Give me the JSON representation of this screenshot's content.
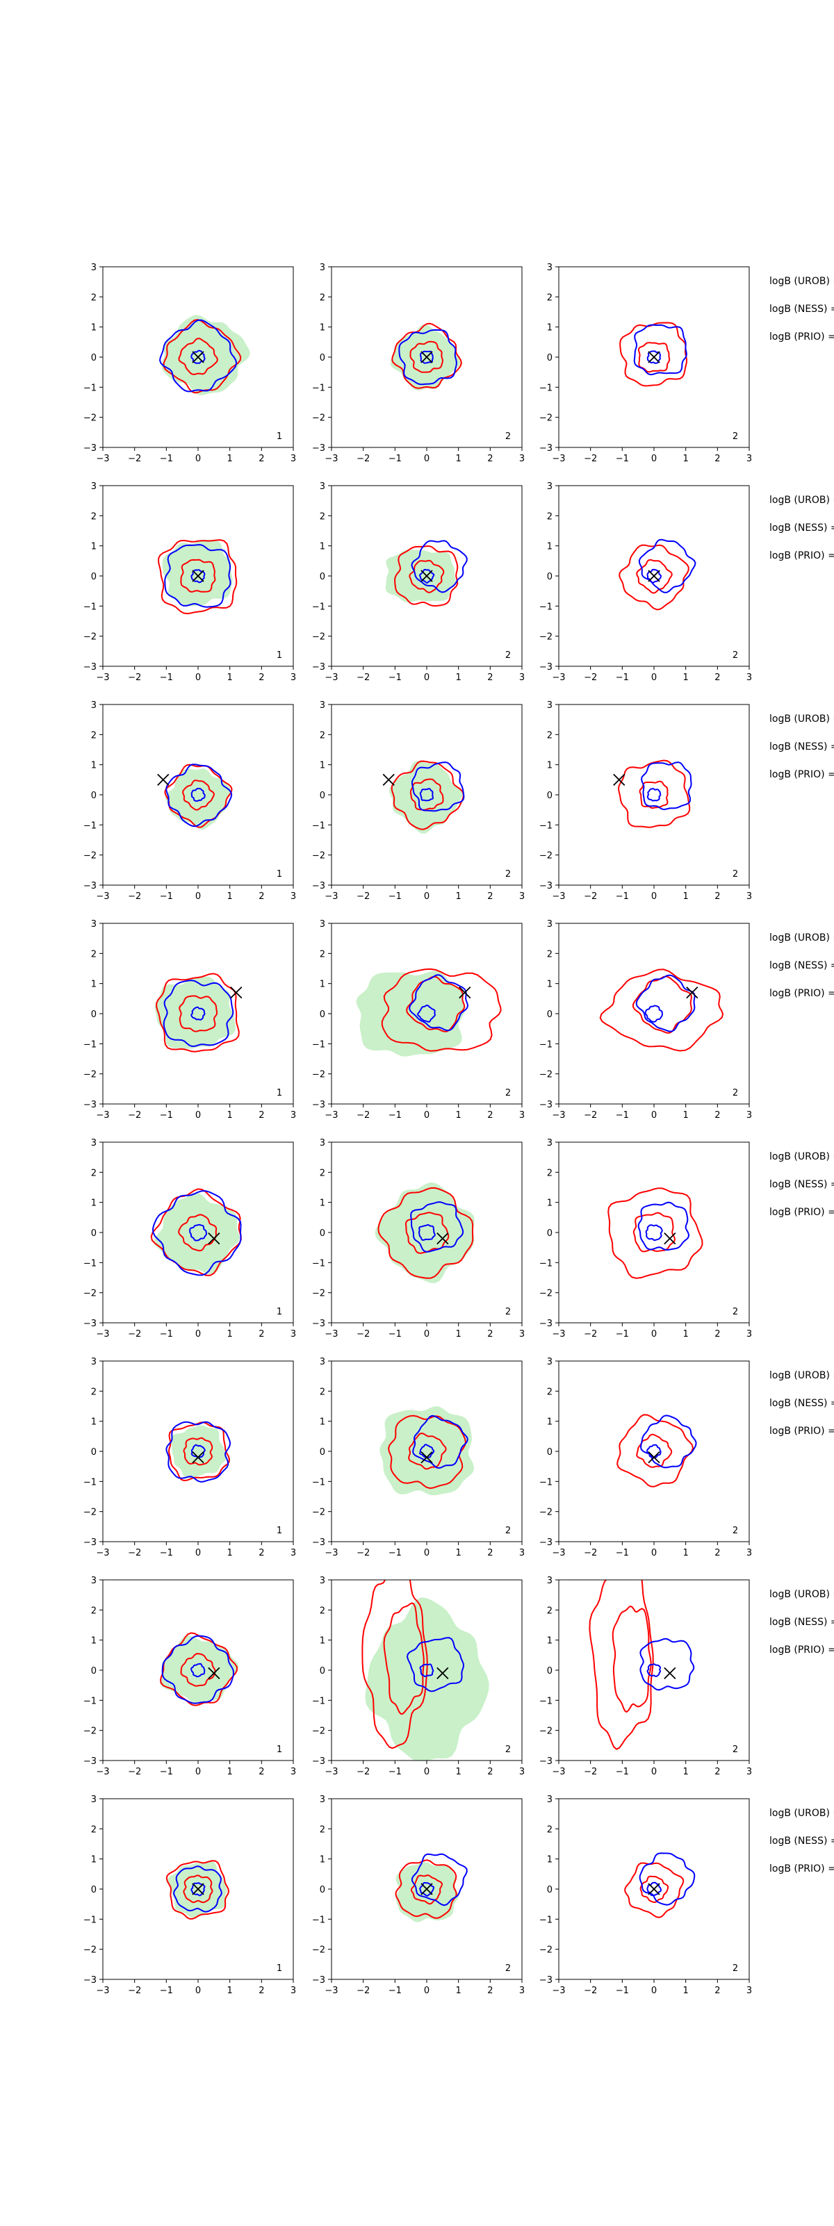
{
  "figure": {
    "colors": {
      "fill": "#c9f0c9",
      "red": "#ff0000",
      "blue": "#0000ff",
      "marker": "#000000"
    }
  },
  "axis": {
    "xlim": [
      -3,
      3
    ],
    "ylim": [
      -3,
      3
    ],
    "xticks": [
      "−3",
      "−2",
      "−1",
      "0",
      "1",
      "2",
      "3"
    ],
    "yticks": [
      "3",
      "2",
      "1",
      "0",
      "−1",
      "−2",
      "−3"
    ]
  },
  "side_labels": [
    "logB (UROB) =",
    "logB (NESS) =",
    "logB (PRIO) ="
  ],
  "chart_data": {
    "type": "contour",
    "grid": "8 rows × 3 columns of square panels",
    "legend": "none",
    "rows": [
      {
        "panels": [
          {
            "corner_label": "1",
            "marker": [
              0.0,
              0.0
            ],
            "fill": {
              "cx": 0.2,
              "cy": 0.05,
              "r": 1.3,
              "sx": 1.0,
              "sy": 0.95
            },
            "red": [
              {
                "cx": 0.1,
                "cy": 0.0,
                "r": 1.1
              },
              {
                "cx": 0.0,
                "cy": 0.0,
                "r": 0.55
              }
            ],
            "blue": [
              {
                "cx": 0.0,
                "cy": 0.0,
                "r": 1.1
              },
              {
                "cx": 0.0,
                "cy": 0.0,
                "r": 0.2
              }
            ]
          },
          {
            "corner_label": "2",
            "marker": [
              0.0,
              0.0
            ],
            "fill": {
              "cx": -0.05,
              "cy": -0.05,
              "r": 1.0,
              "sx": 1.0,
              "sy": 1.0
            },
            "red": [
              {
                "cx": 0.0,
                "cy": 0.0,
                "r": 1.0
              },
              {
                "cx": 0.0,
                "cy": 0.0,
                "r": 0.5
              }
            ],
            "blue": [
              {
                "cx": 0.05,
                "cy": 0.0,
                "r": 0.9
              },
              {
                "cx": 0.0,
                "cy": 0.0,
                "r": 0.2
              }
            ]
          },
          {
            "corner_label": "2",
            "marker": [
              0.0,
              0.0
            ],
            "fill": null,
            "red": [
              {
                "cx": 0.0,
                "cy": 0.1,
                "r": 1.05
              },
              {
                "cx": 0.0,
                "cy": 0.0,
                "r": 0.5
              }
            ],
            "blue": [
              {
                "cx": 0.2,
                "cy": 0.25,
                "r": 0.85
              },
              {
                "cx": 0.0,
                "cy": 0.0,
                "r": 0.2
              }
            ]
          }
        ]
      },
      {
        "panels": [
          {
            "corner_label": "1",
            "marker": [
              0.0,
              0.0
            ],
            "fill": {
              "cx": 0.0,
              "cy": 0.1,
              "r": 1.1,
              "sx": 1.0,
              "sy": 1.0
            },
            "red": [
              {
                "cx": 0.0,
                "cy": 0.0,
                "r": 1.25
              },
              {
                "cx": 0.0,
                "cy": 0.0,
                "r": 0.55
              }
            ],
            "blue": [
              {
                "cx": 0.0,
                "cy": 0.0,
                "r": 1.05
              },
              {
                "cx": 0.0,
                "cy": 0.0,
                "r": 0.2
              }
            ]
          },
          {
            "corner_label": "2",
            "marker": [
              0.0,
              0.0
            ],
            "fill": {
              "cx": -0.2,
              "cy": 0.0,
              "r": 0.95,
              "sx": 1.2,
              "sy": 0.95
            },
            "red": [
              {
                "cx": 0.0,
                "cy": 0.0,
                "r": 1.0
              },
              {
                "cx": 0.0,
                "cy": 0.0,
                "r": 0.5
              }
            ],
            "blue": [
              {
                "cx": 0.4,
                "cy": 0.35,
                "r": 0.8
              },
              {
                "cx": 0.0,
                "cy": 0.0,
                "r": 0.2
              }
            ]
          },
          {
            "corner_label": "2",
            "marker": [
              0.0,
              0.0
            ],
            "fill": null,
            "red": [
              {
                "cx": 0.0,
                "cy": 0.0,
                "r": 1.0
              },
              {
                "cx": 0.0,
                "cy": 0.0,
                "r": 0.5
              }
            ],
            "blue": [
              {
                "cx": 0.4,
                "cy": 0.35,
                "r": 0.8
              },
              {
                "cx": 0.0,
                "cy": 0.0,
                "r": 0.2
              }
            ]
          }
        ]
      },
      {
        "panels": [
          {
            "corner_label": "1",
            "marker": [
              -1.1,
              0.5
            ],
            "fill": {
              "cx": 0.0,
              "cy": -0.1,
              "r": 0.95,
              "sx": 1.0,
              "sy": 1.0
            },
            "red": [
              {
                "cx": 0.0,
                "cy": 0.0,
                "r": 0.95
              },
              {
                "cx": 0.0,
                "cy": 0.0,
                "r": 0.45
              }
            ],
            "blue": [
              {
                "cx": 0.0,
                "cy": 0.0,
                "r": 0.95
              },
              {
                "cx": 0.0,
                "cy": 0.0,
                "r": 0.2
              }
            ]
          },
          {
            "corner_label": "2",
            "marker": [
              -1.2,
              0.5
            ],
            "fill": {
              "cx": -0.05,
              "cy": -0.05,
              "r": 1.05,
              "sx": 1.0,
              "sy": 1.05
            },
            "red": [
              {
                "cx": 0.0,
                "cy": 0.0,
                "r": 1.05
              },
              {
                "cx": 0.0,
                "cy": 0.0,
                "r": 0.5
              }
            ],
            "blue": [
              {
                "cx": 0.35,
                "cy": 0.25,
                "r": 0.8
              },
              {
                "cx": 0.0,
                "cy": 0.0,
                "r": 0.2
              }
            ]
          },
          {
            "corner_label": "2",
            "marker": [
              -1.1,
              0.5
            ],
            "fill": null,
            "red": [
              {
                "cx": 0.0,
                "cy": 0.0,
                "r": 1.1
              },
              {
                "cx": 0.0,
                "cy": 0.0,
                "r": 0.45
              }
            ],
            "blue": [
              {
                "cx": 0.4,
                "cy": 0.3,
                "r": 0.8
              },
              {
                "cx": 0.0,
                "cy": 0.0,
                "r": 0.2
              }
            ]
          }
        ]
      },
      {
        "panels": [
          {
            "corner_label": "1",
            "marker": [
              1.2,
              0.7
            ],
            "fill": {
              "cx": -0.1,
              "cy": 0.0,
              "r": 1.25,
              "sx": 1.0,
              "sy": 0.95
            },
            "red": [
              {
                "cx": 0.0,
                "cy": 0.0,
                "r": 1.3
              },
              {
                "cx": 0.0,
                "cy": 0.0,
                "r": 0.6
              }
            ],
            "blue": [
              {
                "cx": 0.0,
                "cy": 0.0,
                "r": 1.1
              },
              {
                "cx": 0.0,
                "cy": 0.0,
                "r": 0.2
              }
            ]
          },
          {
            "corner_label": "2",
            "marker": [
              1.2,
              0.7
            ],
            "fill": {
              "cx": -0.5,
              "cy": 0.0,
              "r": 1.45,
              "sx": 1.2,
              "sy": 1.0
            },
            "red": [
              {
                "cx": 0.45,
                "cy": 0.1,
                "r": 1.7,
                "sx": 1.1,
                "sy": 0.8
              },
              {
                "cx": 0.3,
                "cy": 0.3,
                "r": 0.85
              }
            ],
            "blue": [
              {
                "cx": 0.4,
                "cy": 0.35,
                "r": 0.85
              },
              {
                "cx": 0.0,
                "cy": 0.0,
                "r": 0.25
              }
            ]
          },
          {
            "corner_label": "2",
            "marker": [
              1.2,
              0.7
            ],
            "fill": null,
            "red": [
              {
                "cx": 0.3,
                "cy": 0.1,
                "r": 1.55,
                "sx": 1.15,
                "sy": 0.8
              },
              {
                "cx": 0.3,
                "cy": 0.3,
                "r": 0.85
              }
            ],
            "blue": [
              {
                "cx": 0.4,
                "cy": 0.35,
                "r": 0.85
              },
              {
                "cx": 0.0,
                "cy": 0.0,
                "r": 0.25
              }
            ]
          }
        ]
      },
      {
        "panels": [
          {
            "corner_label": "1",
            "marker": [
              0.5,
              -0.2
            ],
            "fill": {
              "cx": 0.0,
              "cy": -0.05,
              "r": 1.25,
              "sx": 1.0,
              "sy": 1.0
            },
            "red": [
              {
                "cx": 0.0,
                "cy": 0.0,
                "r": 1.3
              },
              {
                "cx": 0.0,
                "cy": 0.0,
                "r": 0.55
              }
            ],
            "blue": [
              {
                "cx": 0.0,
                "cy": 0.0,
                "r": 1.3
              },
              {
                "cx": 0.0,
                "cy": 0.0,
                "r": 0.25
              }
            ]
          },
          {
            "corner_label": "2",
            "marker": [
              0.5,
              -0.2
            ],
            "fill": {
              "cx": 0.0,
              "cy": 0.0,
              "r": 1.45,
              "sx": 1.0,
              "sy": 1.05
            },
            "red": [
              {
                "cx": 0.0,
                "cy": 0.0,
                "r": 1.4
              },
              {
                "cx": 0.0,
                "cy": 0.0,
                "r": 0.65
              }
            ],
            "blue": [
              {
                "cx": 0.3,
                "cy": 0.2,
                "r": 0.8
              },
              {
                "cx": 0.0,
                "cy": 0.0,
                "r": 0.25
              }
            ]
          },
          {
            "corner_label": "2",
            "marker": [
              0.5,
              -0.2
            ],
            "fill": null,
            "red": [
              {
                "cx": 0.0,
                "cy": 0.0,
                "r": 1.45
              },
              {
                "cx": 0.0,
                "cy": 0.0,
                "r": 0.65
              }
            ],
            "blue": [
              {
                "cx": 0.3,
                "cy": 0.2,
                "r": 0.8
              },
              {
                "cx": 0.0,
                "cy": 0.0,
                "r": 0.25
              }
            ]
          }
        ]
      },
      {
        "panels": [
          {
            "corner_label": "1",
            "marker": [
              0.0,
              -0.2
            ],
            "fill": {
              "cx": 0.0,
              "cy": 0.0,
              "r": 0.85,
              "sx": 1.0,
              "sy": 1.0
            },
            "red": [
              {
                "cx": 0.0,
                "cy": 0.0,
                "r": 0.95
              },
              {
                "cx": 0.0,
                "cy": 0.0,
                "r": 0.45
              }
            ],
            "blue": [
              {
                "cx": 0.0,
                "cy": 0.0,
                "r": 1.0
              },
              {
                "cx": 0.0,
                "cy": 0.0,
                "r": 0.2
              }
            ]
          },
          {
            "corner_label": "2",
            "marker": [
              0.0,
              -0.2
            ],
            "fill": {
              "cx": 0.0,
              "cy": 0.0,
              "r": 1.5,
              "sx": 1.0,
              "sy": 1.0
            },
            "red": [
              {
                "cx": 0.0,
                "cy": 0.0,
                "r": 1.2
              },
              {
                "cx": 0.0,
                "cy": 0.0,
                "r": 0.55
              }
            ],
            "blue": [
              {
                "cx": 0.4,
                "cy": 0.3,
                "r": 0.8
              },
              {
                "cx": 0.0,
                "cy": 0.0,
                "r": 0.2
              }
            ]
          },
          {
            "corner_label": "2",
            "marker": [
              0.0,
              -0.2
            ],
            "fill": null,
            "red": [
              {
                "cx": 0.0,
                "cy": 0.0,
                "r": 1.1
              },
              {
                "cx": 0.0,
                "cy": 0.0,
                "r": 0.5
              }
            ],
            "blue": [
              {
                "cx": 0.45,
                "cy": 0.3,
                "r": 0.8
              },
              {
                "cx": 0.0,
                "cy": 0.0,
                "r": 0.2
              }
            ]
          }
        ]
      },
      {
        "panels": [
          {
            "corner_label": "1",
            "marker": [
              0.5,
              -0.1
            ],
            "fill": {
              "cx": 0.0,
              "cy": 0.0,
              "r": 1.05,
              "sx": 1.1,
              "sy": 1.0
            },
            "red": [
              {
                "cx": 0.0,
                "cy": 0.0,
                "r": 1.1
              },
              {
                "cx": 0.0,
                "cy": 0.0,
                "r": 0.5
              }
            ],
            "blue": [
              {
                "cx": 0.0,
                "cy": 0.0,
                "r": 1.05
              },
              {
                "cx": 0.0,
                "cy": 0.0,
                "r": 0.2
              }
            ]
          },
          {
            "corner_label": "2",
            "marker": [
              0.5,
              -0.1
            ],
            "fill": {
              "cx": 0.0,
              "cy": -0.4,
              "r": 2.3,
              "sx": 0.78,
              "sy": 1.1
            },
            "red": [
              {
                "cx": -1.0,
                "cy": 0.5,
                "r": 1.55,
                "sx": 0.62,
                "sy": 1.9
              },
              {
                "cx": -0.7,
                "cy": 0.4,
                "r": 1.0,
                "sx": 0.6,
                "sy": 1.75
              }
            ],
            "blue": [
              {
                "cx": 0.3,
                "cy": 0.2,
                "r": 0.85
              },
              {
                "cx": 0.0,
                "cy": 0.0,
                "r": 0.2
              }
            ]
          },
          {
            "corner_label": "2",
            "marker": [
              0.5,
              -0.1
            ],
            "fill": null,
            "red": [
              {
                "cx": -1.0,
                "cy": 0.5,
                "r": 1.55,
                "sx": 0.62,
                "sy": 1.9
              },
              {
                "cx": -0.7,
                "cy": 0.4,
                "r": 1.0,
                "sx": 0.6,
                "sy": 1.75
              }
            ],
            "blue": [
              {
                "cx": 0.4,
                "cy": 0.2,
                "r": 0.85
              },
              {
                "cx": 0.0,
                "cy": 0.0,
                "r": 0.2
              }
            ]
          }
        ]
      },
      {
        "panels": [
          {
            "corner_label": "1",
            "marker": [
              0.0,
              0.0
            ],
            "fill": {
              "cx": 0.0,
              "cy": 0.0,
              "r": 0.9,
              "sx": 1.0,
              "sy": 1.0
            },
            "red": [
              {
                "cx": 0.0,
                "cy": 0.0,
                "r": 0.95
              },
              {
                "cx": 0.0,
                "cy": 0.0,
                "r": 0.45
              }
            ],
            "blue": [
              {
                "cx": 0.0,
                "cy": 0.0,
                "r": 0.75
              },
              {
                "cx": 0.0,
                "cy": 0.0,
                "r": 0.2
              }
            ]
          },
          {
            "corner_label": "2",
            "marker": [
              0.0,
              0.0
            ],
            "fill": {
              "cx": 0.0,
              "cy": -0.1,
              "r": 1.0,
              "sx": 1.0,
              "sy": 1.0
            },
            "red": [
              {
                "cx": 0.0,
                "cy": 0.0,
                "r": 0.95
              },
              {
                "cx": 0.0,
                "cy": 0.0,
                "r": 0.45
              }
            ],
            "blue": [
              {
                "cx": 0.4,
                "cy": 0.35,
                "r": 0.8
              },
              {
                "cx": 0.0,
                "cy": 0.0,
                "r": 0.2
              }
            ]
          },
          {
            "corner_label": "2",
            "marker": [
              0.0,
              0.0
            ],
            "fill": null,
            "red": [
              {
                "cx": 0.0,
                "cy": 0.0,
                "r": 0.85
              },
              {
                "cx": 0.0,
                "cy": 0.0,
                "r": 0.4
              }
            ],
            "blue": [
              {
                "cx": 0.4,
                "cy": 0.35,
                "r": 0.8
              },
              {
                "cx": 0.0,
                "cy": 0.0,
                "r": 0.2
              }
            ]
          }
        ]
      }
    ]
  }
}
